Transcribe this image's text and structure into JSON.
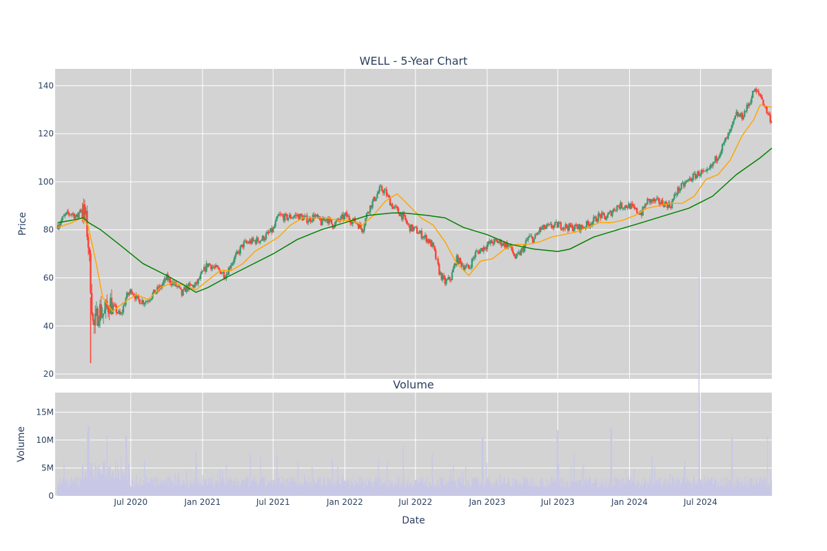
{
  "chart_data": [
    {
      "type": "candlestick",
      "title": "WELL - 5-Year Chart",
      "ylabel": "Price",
      "ylim": [
        18,
        147
      ],
      "yticks": [
        "20",
        "40",
        "60",
        "80",
        "100",
        "120",
        "140"
      ],
      "xrange": [
        "2019-12-20",
        "2024-12-31"
      ],
      "grid": true,
      "legend": "none",
      "colors": {
        "background": "#d3d3d3",
        "increasing": "#3d9970",
        "decreasing": "#ff4136",
        "sma_short": "#ffa500",
        "sma_long": "#008000",
        "grid": "#ffffff"
      },
      "series": [
        {
          "kind": "close",
          "x": [
            "2019-12-27",
            "2020-01-15",
            "2020-02-01",
            "2020-02-15",
            "2020-02-22",
            "2020-03-06",
            "2020-03-13",
            "2020-03-20",
            "2020-03-27",
            "2020-04-10",
            "2020-04-24",
            "2020-05-08",
            "2020-05-22",
            "2020-06-05",
            "2020-06-19",
            "2020-07-03",
            "2020-07-17",
            "2020-08-07",
            "2020-09-01",
            "2020-09-15",
            "2020-10-01",
            "2020-10-15",
            "2020-10-30",
            "2020-11-09",
            "2020-11-20",
            "2020-12-15",
            "2021-01-15",
            "2021-02-01",
            "2021-02-15",
            "2021-03-01",
            "2021-03-15",
            "2021-04-01",
            "2021-04-15",
            "2021-05-03",
            "2021-06-01",
            "2021-07-01",
            "2021-07-15",
            "2021-08-02",
            "2021-09-01",
            "2021-10-01",
            "2021-10-15",
            "2021-11-01",
            "2021-11-15",
            "2021-12-01",
            "2022-01-03",
            "2022-01-18",
            "2022-02-01",
            "2022-02-15",
            "2022-03-01",
            "2022-03-15",
            "2022-04-01",
            "2022-04-14",
            "2022-05-02",
            "2022-05-16",
            "2022-06-01",
            "2022-06-15",
            "2022-07-01",
            "2022-08-01",
            "2022-08-15",
            "2022-09-01",
            "2022-09-15",
            "2022-09-30",
            "2022-10-14",
            "2022-11-01",
            "2022-11-15",
            "2022-12-01",
            "2023-01-03",
            "2023-01-17",
            "2023-02-01",
            "2023-03-01",
            "2023-03-15",
            "2023-04-03",
            "2023-04-17",
            "2023-05-01",
            "2023-05-15",
            "2023-06-01",
            "2023-07-03",
            "2023-08-01",
            "2023-09-01",
            "2023-10-02",
            "2023-10-16",
            "2023-11-01",
            "2023-12-01",
            "2024-01-02",
            "2024-01-16",
            "2024-02-01",
            "2024-02-15",
            "2024-03-01",
            "2024-04-01",
            "2024-04-15",
            "2024-05-01",
            "2024-06-03",
            "2024-07-01",
            "2024-07-15",
            "2024-08-01",
            "2024-09-03",
            "2024-09-16",
            "2024-10-01",
            "2024-10-15",
            "2024-11-01",
            "2024-11-15",
            "2024-12-02",
            "2024-12-16",
            "2024-12-31"
          ],
          "y": [
            82,
            86,
            87,
            85,
            89,
            86,
            77,
            58,
            38,
            47,
            45,
            50,
            47,
            44,
            52,
            55,
            51,
            50,
            54,
            56,
            60,
            58,
            56,
            53,
            56,
            57,
            66,
            64,
            63,
            61,
            66,
            70,
            74,
            75,
            76,
            80,
            86,
            85,
            86,
            84,
            86,
            83,
            85,
            82,
            86,
            84,
            83,
            80,
            88,
            92,
            97,
            96,
            90,
            88,
            85,
            81,
            80,
            76,
            73,
            62,
            58,
            60,
            68,
            65,
            64,
            70,
            74,
            75,
            75,
            73,
            68,
            72,
            77,
            76,
            80,
            81,
            82,
            81,
            81,
            84,
            86,
            85,
            90,
            90,
            88,
            87,
            92,
            92,
            91,
            90,
            96,
            101,
            104,
            103,
            107,
            117,
            121,
            128,
            127,
            132,
            138,
            136,
            130,
            125
          ]
        },
        {
          "kind": "sma_short",
          "x": [
            "2019-12-27",
            "2020-02-01",
            "2020-02-25",
            "2020-03-13",
            "2020-04-01",
            "2020-04-20",
            "2020-05-15",
            "2020-06-15",
            "2020-07-15",
            "2020-08-15",
            "2020-09-15",
            "2020-10-15",
            "2020-11-15",
            "2020-12-15",
            "2021-01-15",
            "2021-02-15",
            "2021-03-15",
            "2021-04-15",
            "2021-05-15",
            "2021-06-15",
            "2021-07-15",
            "2021-08-15",
            "2021-09-15",
            "2021-10-15",
            "2021-11-15",
            "2021-12-15",
            "2022-01-15",
            "2022-02-15",
            "2022-03-15",
            "2022-04-15",
            "2022-05-15",
            "2022-06-15",
            "2022-07-15",
            "2022-08-15",
            "2022-09-15",
            "2022-10-15",
            "2022-11-15",
            "2022-12-15",
            "2023-01-15",
            "2023-02-15",
            "2023-03-15",
            "2023-04-15",
            "2023-05-15",
            "2023-06-15",
            "2023-07-15",
            "2023-08-15",
            "2023-09-15",
            "2023-10-15",
            "2023-11-15",
            "2023-12-15",
            "2024-01-15",
            "2024-02-15",
            "2024-03-15",
            "2024-04-15",
            "2024-05-15",
            "2024-06-15",
            "2024-07-15",
            "2024-08-15",
            "2024-09-15",
            "2024-10-15",
            "2024-11-15",
            "2024-12-01",
            "2024-12-31"
          ],
          "y": [
            81,
            83,
            85,
            82,
            68,
            52,
            46,
            50,
            53,
            51,
            56,
            58,
            57,
            55,
            59,
            63,
            63,
            66,
            71,
            74,
            77,
            82,
            85,
            85,
            85,
            84,
            84,
            82,
            86,
            92,
            95,
            90,
            85,
            82,
            75,
            66,
            61,
            67,
            68,
            72,
            74,
            74,
            75,
            77,
            78,
            79,
            81,
            83,
            83,
            84,
            86,
            89,
            90,
            91,
            91,
            94,
            101,
            103,
            109,
            119,
            126,
            132,
            131
          ]
        },
        {
          "kind": "sma_long",
          "x": [
            "2019-12-27",
            "2020-02-01",
            "2020-03-01",
            "2020-03-15",
            "2020-04-15",
            "2020-06-01",
            "2020-08-01",
            "2020-10-01",
            "2020-11-15",
            "2020-12-15",
            "2021-01-15",
            "2021-03-01",
            "2021-05-01",
            "2021-07-01",
            "2021-09-01",
            "2021-11-01",
            "2022-01-01",
            "2022-03-01",
            "2022-05-01",
            "2022-06-01",
            "2022-08-01",
            "2022-09-15",
            "2022-11-01",
            "2023-01-01",
            "2023-03-01",
            "2023-05-01",
            "2023-07-01",
            "2023-08-01",
            "2023-10-01",
            "2023-12-01",
            "2024-02-01",
            "2024-04-01",
            "2024-06-01",
            "2024-08-01",
            "2024-10-01",
            "2024-12-01",
            "2024-12-31"
          ],
          "y": [
            83,
            84,
            85,
            83,
            80,
            74,
            66,
            61,
            57,
            54,
            56,
            60,
            65,
            70,
            76,
            80,
            83,
            86,
            87,
            87,
            86,
            85,
            81,
            78,
            74,
            72,
            71,
            72,
            77,
            80,
            83,
            86,
            89,
            94,
            103,
            110,
            114
          ]
        }
      ]
    },
    {
      "type": "bar",
      "title": "Volume",
      "xlabel": "Date",
      "ylabel": "Volume",
      "ylim": [
        0,
        18500000
      ],
      "yticks": [
        "0",
        "5M",
        "10M",
        "15M"
      ],
      "xticks": [
        "Jul 2020",
        "Jan 2021",
        "Jul 2021",
        "Jan 2022",
        "Jul 2022",
        "Jan 2023",
        "Jul 2023",
        "Jan 2024",
        "Jul 2024"
      ],
      "colors": {
        "bar": "#c8c8e6"
      },
      "peaks": [
        {
          "x": "2020-03-15",
          "y": 12500000
        },
        {
          "x": "2020-05-01",
          "y": 10800000
        },
        {
          "x": "2020-06-19",
          "y": 10800000
        },
        {
          "x": "2020-12-15",
          "y": 7900000
        },
        {
          "x": "2022-05-31",
          "y": 9000000
        },
        {
          "x": "2022-12-20",
          "y": 10400000
        },
        {
          "x": "2023-06-30",
          "y": 11800000
        },
        {
          "x": "2023-11-15",
          "y": 12200000
        },
        {
          "x": "2024-06-28",
          "y": 17800000
        },
        {
          "x": "2024-09-20",
          "y": 10500000
        },
        {
          "x": "2024-12-20",
          "y": 10800000
        }
      ],
      "baseline": 2500000
    }
  ]
}
